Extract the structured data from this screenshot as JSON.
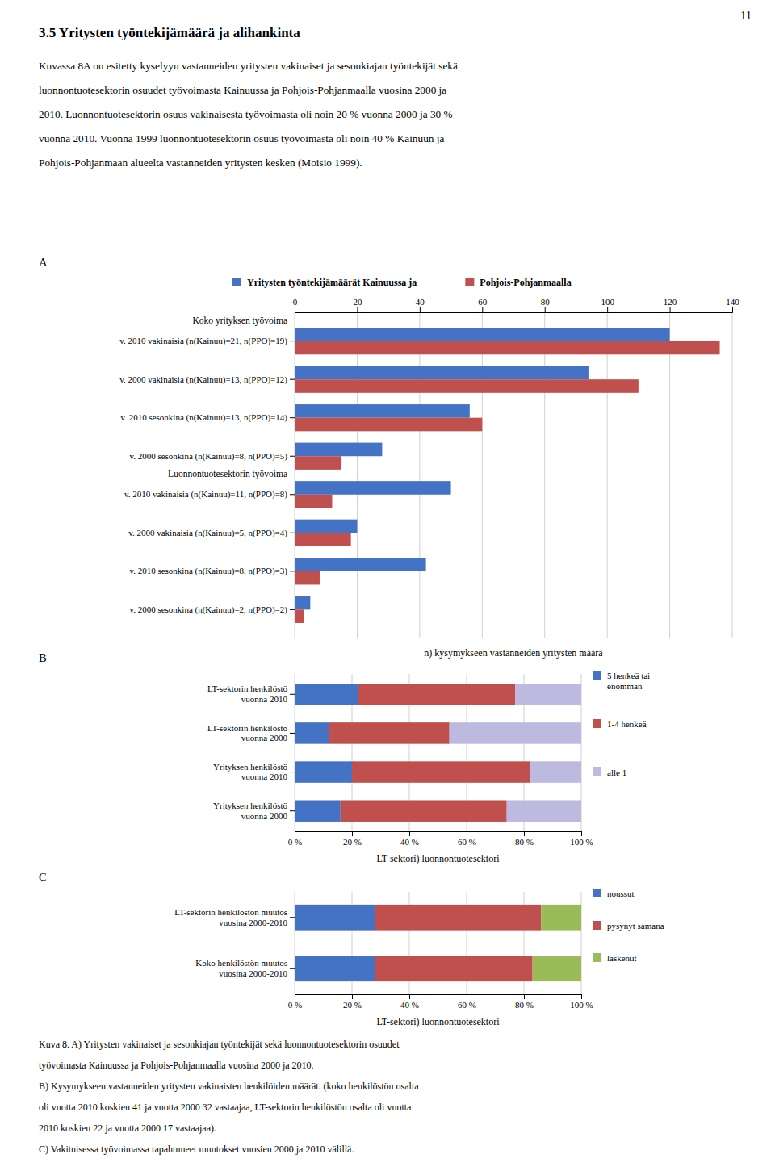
{
  "page_number": "11",
  "title": "3.5 Yritysten työntekijämäärä ja alihankinta",
  "intro_lines": [
    "Kuvassa 8A on esitetty kyselyyn vastanneiden yritysten vakinaiset ja sesonkiajan työntekijät sekä",
    "luonnontuotesektorin osuudet työvoimasta Kainuussa ja Pohjois-Pohjanmaalla vuosina 2000 ja",
    "2010. Luonnontuotesektorin osuus vakinaisesta työvoimasta oli noin 20 % vuonna 2000 ja 30 %",
    "vuonna 2010. Vuonna 1999 luonnontuotesektorin osuus työvoimasta oli noin 40 % Kainuun ja",
    "Pohjois-Pohjanmaan alueelta vastanneiden yritysten kesken (Moisio 1999)."
  ],
  "caption_lines": [
    "Kuva 8. A) Yritysten vakinaiset ja sesonkiajan työntekijät sekä luonnontuotesektorin osuudet",
    "työvoimasta Kainuussa ja Pohjois-Pohjanmaalla vuosina 2000 ja 2010.",
    "B) Kysymykseen vastanneiden yritysten vakinaisten henkilöiden määrät. (koko henkilöstön osalta",
    "oli vuotta 2010 koskien 41 ja vuotta 2000 32 vastaajaa, LT-sektorin henkilöstön osalta oli vuotta",
    "2010 koskien 22 ja vuotta 2000 17 vastaajaa).",
    "C) Vakituisessa työvoimassa tapahtuneet muutokset vuosien 2000 ja 2010 välillä."
  ],
  "chart_data": [
    {
      "type": "bar",
      "title": "A",
      "orientation": "horizontal",
      "x_label": "n) kysymykseen vastanneiden yritysten määrä",
      "categories": [
        "v. 2010 vakinaisia (n(Kainuu)=21, n(PPO)=19)",
        "v. 2000 vakinaisia (n(Kainuu)=13, n(PPO)=12)",
        "v. 2010 sesonkina (n(Kainuu)=13, n(PPO)=14)",
        "v. 2000 sesonkina (n(Kainuu)=8, n(PPO)=5)",
        "v. 2010 vakinaisia (n(Kainuu)=11, n(PPO)=8)",
        "v. 2000 vakinaisia (n(Kainuu)=5, n(PPO)=4)",
        "v. 2010 sesonkina (n(Kainuu)=8, n(PPO)=3)",
        "v. 2000 sesonkina (n(Kainuu)=2, n(PPO)=2)"
      ],
      "series": [
        {
          "name": "Yritysten työntekijämäärät Kainuussa ja",
          "color": "#4472C4",
          "values": [
            120,
            94,
            56,
            28,
            50,
            20,
            42,
            5
          ]
        },
        {
          "name": "Pohjois-Pohjanmaalla",
          "color": "#C0504D",
          "values": [
            136,
            110,
            60,
            15,
            12,
            18,
            8,
            3
          ]
        }
      ],
      "annotations": [
        {
          "text": "Koko yrityksen työvoima",
          "category": "v. 2010 vakinaisia (n(Kainuu)=21, n(PPO)=19)"
        },
        {
          "text": "Luonnontuotesektorin työvoima",
          "category": "v. 2010 vakinaisia (n(Kainuu)=11, n(PPO)=8)"
        }
      ],
      "xlim": [
        0,
        140
      ],
      "xticks": [
        0,
        20,
        40,
        60,
        80,
        100,
        120,
        140
      ],
      "grid": true,
      "legend": "top"
    },
    {
      "type": "bar",
      "title": "B",
      "orientation": "horizontal",
      "stacked": true,
      "x_label": "LT-sektori) luonnontuotesektori",
      "categories": [
        "LT-sektorin henkilöstö\nvuonna 2010",
        "LT-sektorin henkilöstö\nvuonna 2000",
        "Yrityksen henkilöstö\nvuonna 2010",
        "Yrityksen henkilöstö\nvuonna 2000"
      ],
      "series": [
        {
          "name": "5 henkeä tai\nenommän",
          "color": "#4472C4",
          "values": [
            22,
            12,
            20,
            16
          ]
        },
        {
          "name": "1-4 henkeä",
          "color": "#C0504D",
          "values": [
            55,
            42,
            62,
            58
          ]
        },
        {
          "name": "alle 1",
          "color": "#BDB9E0",
          "values": [
            23,
            46,
            18,
            26
          ]
        }
      ],
      "xlim": [
        0,
        100
      ],
      "xticks": [
        {
          "value": 0,
          "label": "0 %"
        },
        {
          "value": 20,
          "label": "20 %"
        },
        {
          "value": 40,
          "label": "40 %"
        },
        {
          "value": 60,
          "label": "60 %"
        },
        {
          "value": 80,
          "label": "80 %"
        },
        {
          "value": 100,
          "label": "100 %"
        }
      ],
      "grid": true,
      "legend": "right"
    },
    {
      "type": "bar",
      "title": "C",
      "orientation": "horizontal",
      "stacked": true,
      "x_label": "LT-sektori) luonnontuotesektori",
      "categories": [
        "LT-sektorin henkilöstön muutos\nvuosina 2000-2010",
        "Koko henkilöstön muutos\nvuosina 2000-2010"
      ],
      "series": [
        {
          "name": "noussut",
          "color": "#4472C4",
          "values": [
            28,
            28
          ]
        },
        {
          "name": "pysynyt samana",
          "color": "#C0504D",
          "values": [
            58,
            55
          ]
        },
        {
          "name": "laskenut",
          "color": "#9BBB59",
          "values": [
            14,
            17
          ]
        }
      ],
      "xlim": [
        0,
        100
      ],
      "xticks": [
        {
          "value": 0,
          "label": "0 %"
        },
        {
          "value": 20,
          "label": "20 %"
        },
        {
          "value": 40,
          "label": "40 %"
        },
        {
          "value": 60,
          "label": "60 %"
        },
        {
          "value": 80,
          "label": "80 %"
        },
        {
          "value": 100,
          "label": "100 %"
        }
      ],
      "grid": true,
      "legend": "right"
    }
  ]
}
